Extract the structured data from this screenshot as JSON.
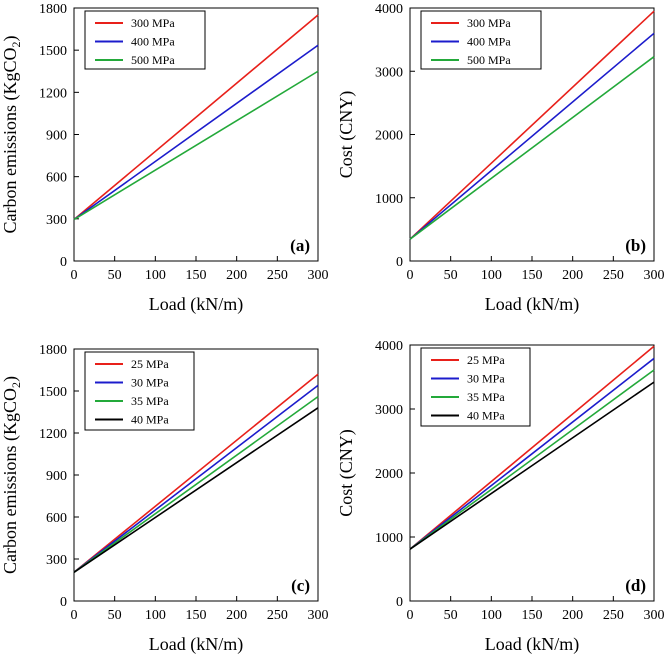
{
  "chart_data": [
    {
      "type": "line",
      "panel_label": "(a)",
      "xlabel": "Load (kN/m)",
      "ylabel_main": "Carbon emissions (KgCO",
      "ylabel_sub": "2",
      "ylabel_end": ")",
      "xlim": [
        0,
        300
      ],
      "ylim": [
        0,
        1800
      ],
      "xticks": [
        "0",
        "50",
        "100",
        "150",
        "200",
        "250",
        "300"
      ],
      "yticks": [
        "0",
        "300",
        "600",
        "900",
        "1200",
        "1500",
        "1800"
      ],
      "legend_position": "top-left",
      "series": [
        {
          "name": "300 MPa",
          "color": "#e8201a",
          "x": [
            0,
            300
          ],
          "y": [
            295,
            1750
          ]
        },
        {
          "name": "400 MPa",
          "color": "#1c1ccc",
          "x": [
            0,
            300
          ],
          "y": [
            295,
            1535
          ]
        },
        {
          "name": "500 MPa",
          "color": "#23a93a",
          "x": [
            0,
            300
          ],
          "y": [
            295,
            1350
          ]
        }
      ]
    },
    {
      "type": "line",
      "panel_label": "(b)",
      "xlabel": "Load (kN/m)",
      "ylabel_main": "Cost (CNY)",
      "ylabel_sub": "",
      "ylabel_end": "",
      "xlim": [
        0,
        300
      ],
      "ylim": [
        0,
        4000
      ],
      "xticks": [
        "0",
        "50",
        "100",
        "150",
        "200",
        "250",
        "300"
      ],
      "yticks": [
        "0",
        "1000",
        "2000",
        "3000",
        "4000"
      ],
      "legend_position": "top-left",
      "series": [
        {
          "name": "300 MPa",
          "color": "#e8201a",
          "x": [
            0,
            300
          ],
          "y": [
            345,
            3950
          ]
        },
        {
          "name": "400 MPa",
          "color": "#1c1ccc",
          "x": [
            0,
            300
          ],
          "y": [
            345,
            3600
          ]
        },
        {
          "name": "500 MPa",
          "color": "#23a93a",
          "x": [
            0,
            300
          ],
          "y": [
            345,
            3230
          ]
        }
      ]
    },
    {
      "type": "line",
      "panel_label": "(c)",
      "xlabel": "Load (kN/m)",
      "ylabel_main": "Carbon emissions (KgCO",
      "ylabel_sub": "2",
      "ylabel_end": ")",
      "xlim": [
        0,
        300
      ],
      "ylim": [
        0,
        1800
      ],
      "xticks": [
        "0",
        "50",
        "100",
        "150",
        "200",
        "250",
        "300"
      ],
      "yticks": [
        "0",
        "300",
        "600",
        "900",
        "1200",
        "1500",
        "1800"
      ],
      "legend_position": "top-left",
      "series": [
        {
          "name": "25 MPa",
          "color": "#e8201a",
          "x": [
            0,
            300
          ],
          "y": [
            205,
            1620
          ]
        },
        {
          "name": "30 MPa",
          "color": "#1c1ccc",
          "x": [
            0,
            300
          ],
          "y": [
            205,
            1540
          ]
        },
        {
          "name": "35 MPa",
          "color": "#23a93a",
          "x": [
            0,
            300
          ],
          "y": [
            205,
            1460
          ]
        },
        {
          "name": "40 MPa",
          "color": "#000000",
          "x": [
            0,
            300
          ],
          "y": [
            205,
            1380
          ]
        }
      ]
    },
    {
      "type": "line",
      "panel_label": "(d)",
      "xlabel": "Load (kN/m)",
      "ylabel_main": "Cost (CNY)",
      "ylabel_sub": "",
      "ylabel_end": "",
      "xlim": [
        0,
        300
      ],
      "ylim": [
        0,
        4000
      ],
      "xticks": [
        "0",
        "50",
        "100",
        "150",
        "200",
        "250",
        "300"
      ],
      "yticks": [
        "0",
        "1000",
        "2000",
        "3000",
        "4000"
      ],
      "legend_position": "top-left",
      "series": [
        {
          "name": "25 MPa",
          "color": "#e8201a",
          "x": [
            0,
            300
          ],
          "y": [
            810,
            3980
          ]
        },
        {
          "name": "30 MPa",
          "color": "#1c1ccc",
          "x": [
            0,
            300
          ],
          "y": [
            810,
            3790
          ]
        },
        {
          "name": "35 MPa",
          "color": "#23a93a",
          "x": [
            0,
            300
          ],
          "y": [
            810,
            3610
          ]
        },
        {
          "name": "40 MPa",
          "color": "#000000",
          "x": [
            0,
            300
          ],
          "y": [
            810,
            3420
          ]
        }
      ]
    }
  ]
}
